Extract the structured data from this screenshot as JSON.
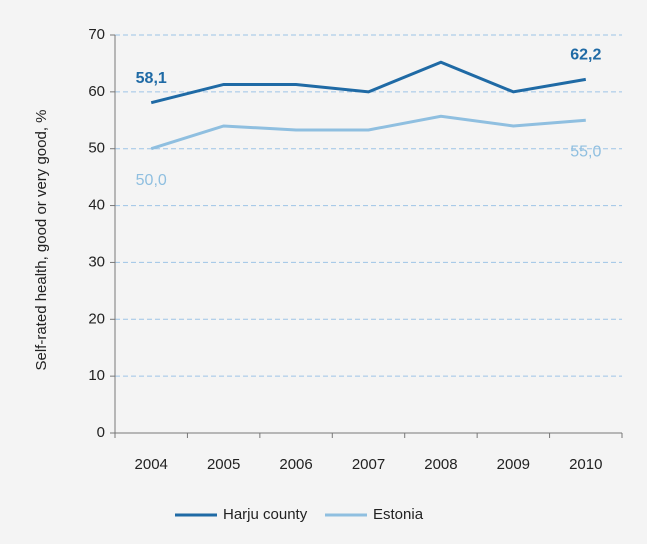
{
  "chart_data": {
    "type": "line",
    "y_label": "Self-rated health, good or very good, %",
    "categories": [
      "2004",
      "2005",
      "2006",
      "2007",
      "2008",
      "2009",
      "2010"
    ],
    "series": [
      {
        "name": "Harju county",
        "color": "#1f6aa5",
        "values": [
          58.1,
          61.3,
          61.3,
          60.0,
          65.2,
          60.0,
          62.2
        ],
        "value_labels": [
          "58,1",
          null,
          null,
          null,
          null,
          null,
          "62,2"
        ]
      },
      {
        "name": "Estonia",
        "color": "#8fbfe0",
        "values": [
          50.0,
          54.0,
          53.3,
          53.3,
          55.7,
          54.0,
          55.0
        ],
        "value_labels": [
          "50,0",
          null,
          null,
          null,
          null,
          null,
          "55,0"
        ]
      }
    ],
    "ylim": [
      0,
      70
    ],
    "yticks": [
      0,
      10,
      20,
      30,
      40,
      50,
      60,
      70
    ],
    "grid": true,
    "legend": "bottom"
  }
}
